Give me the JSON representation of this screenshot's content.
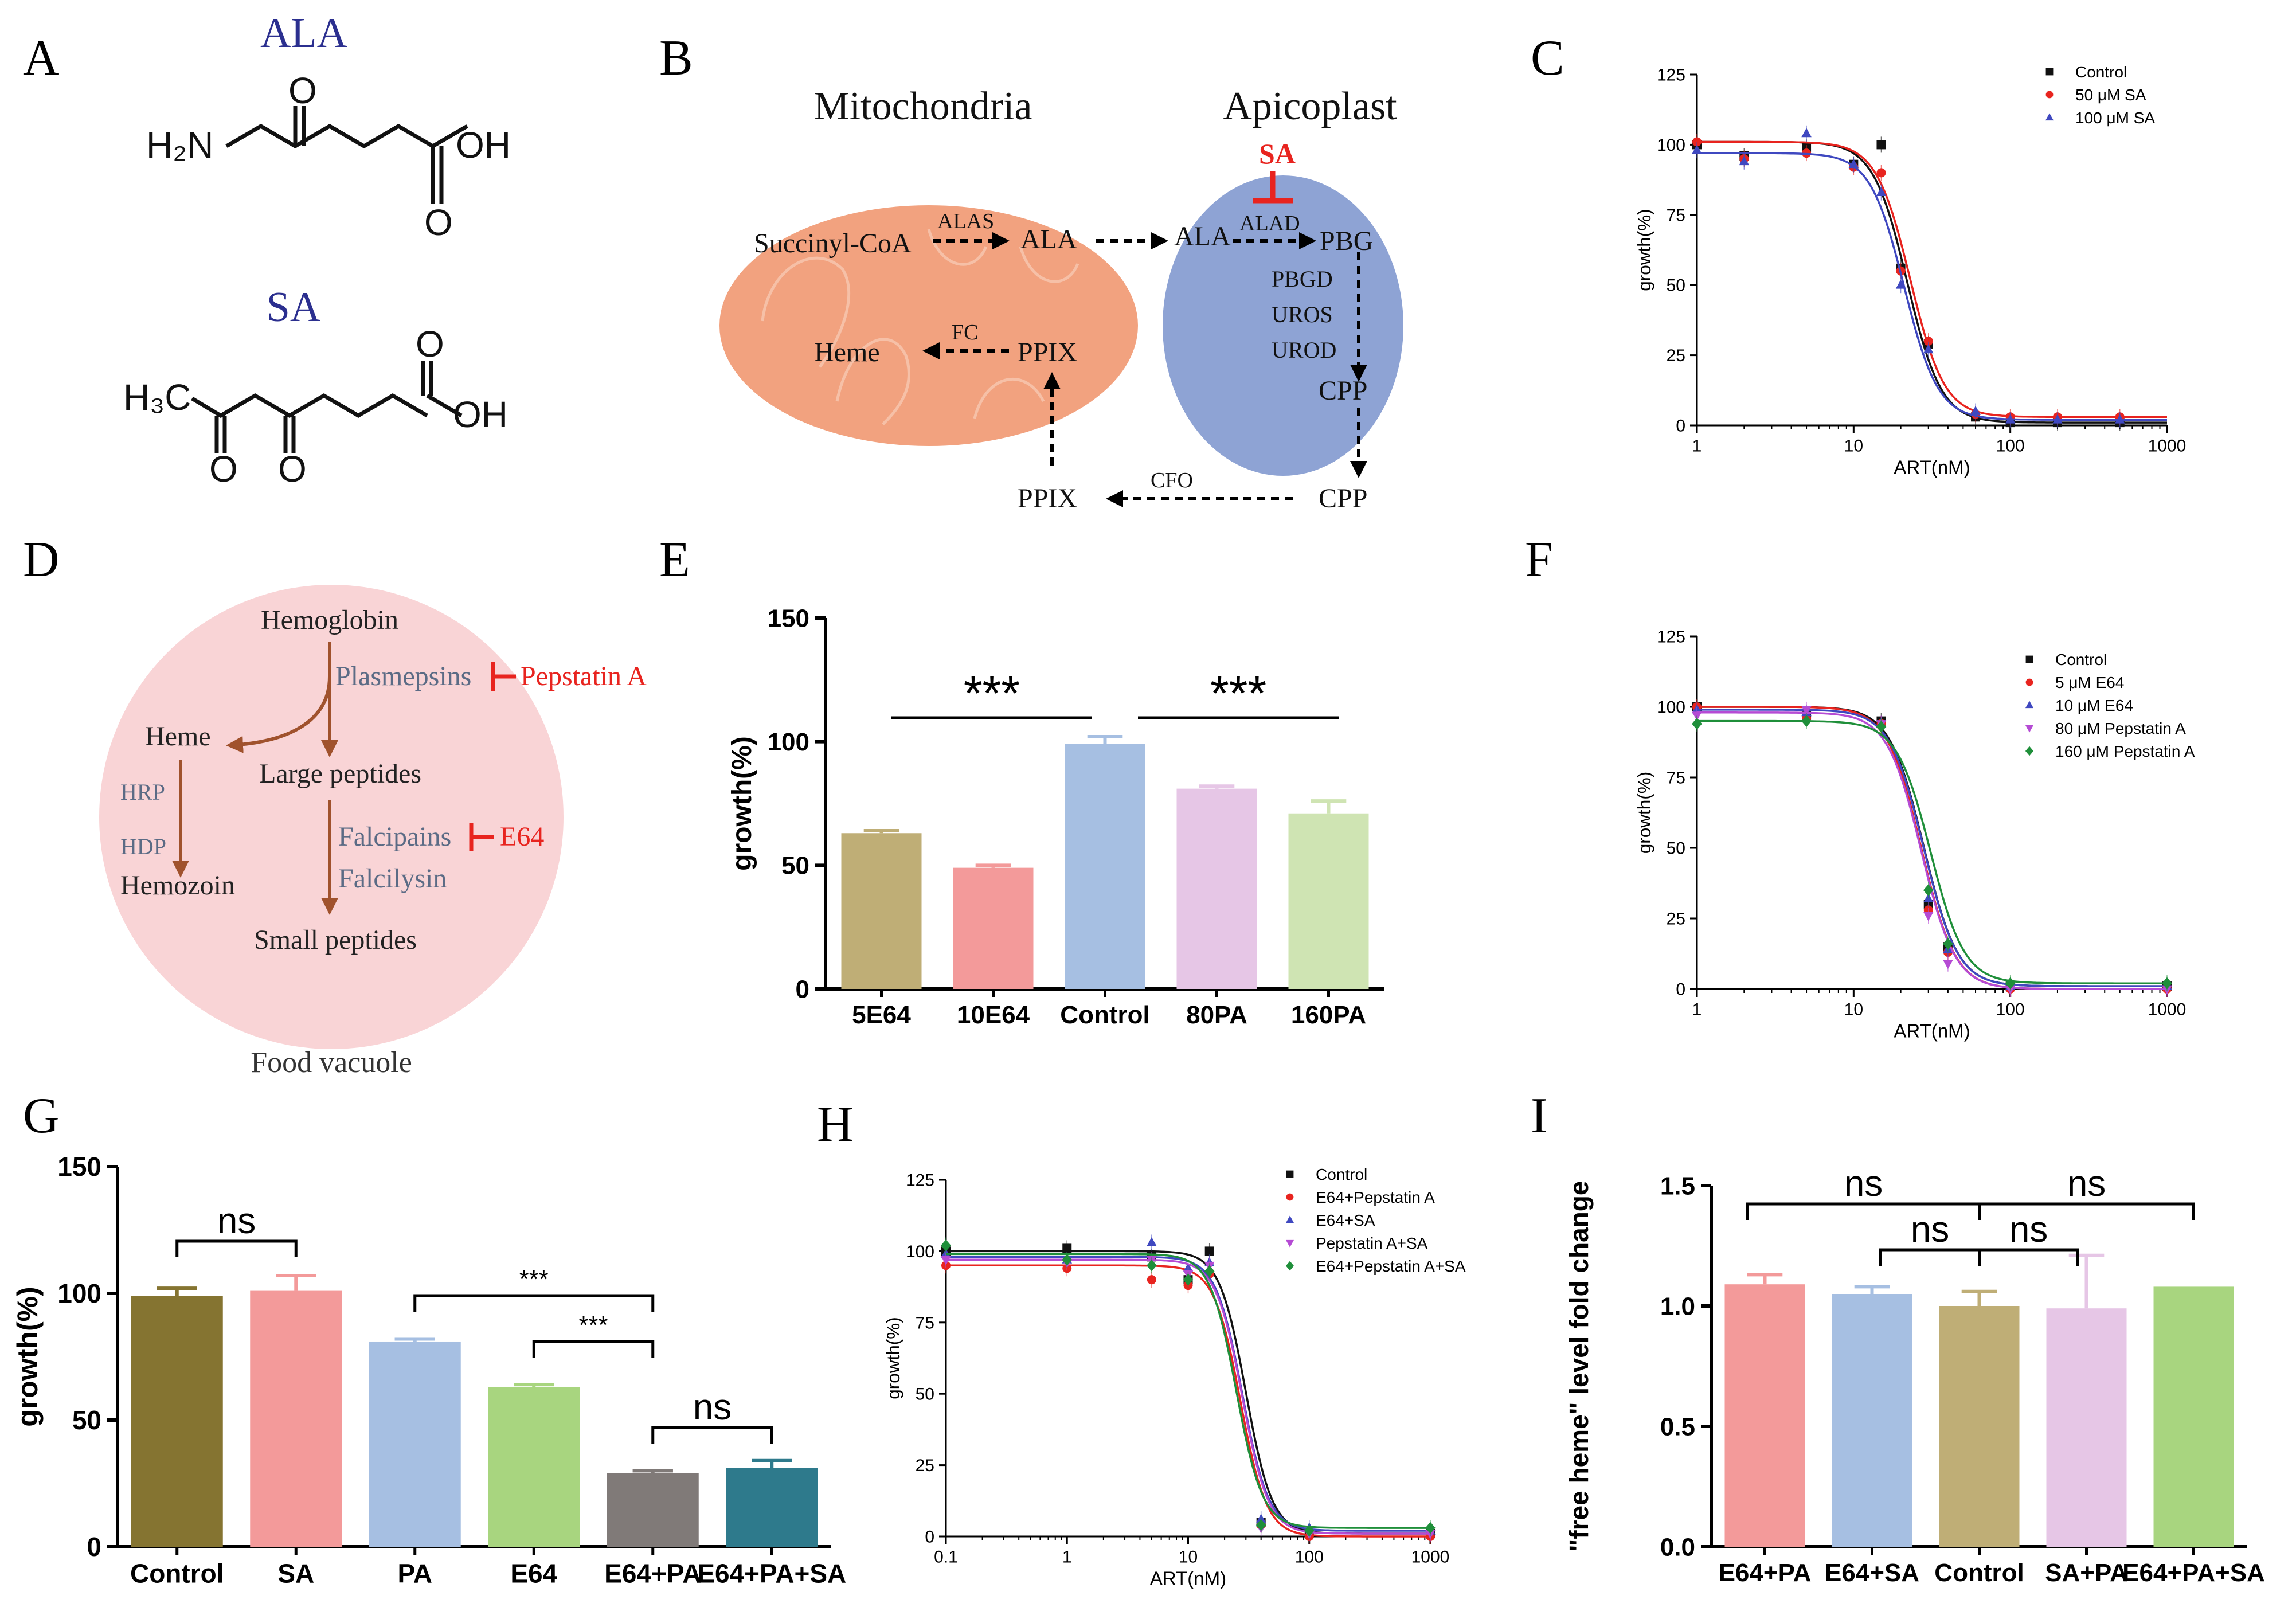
{
  "colors": {
    "mito": "#f2a27f",
    "apico": "#8ea3d4",
    "vacuole": "#f9d4d6",
    "red": "#e8241f",
    "navy": "#2b2f8f",
    "brown": "#a0522d",
    "blackMarker": "#111111",
    "redMarker": "#e8241f",
    "blueMarker": "#3f48c0",
    "purpleMarker": "#b54bd4",
    "greenMarker": "#1f8f3a"
  },
  "panels": {
    "A": {
      "letter": "A",
      "ala_title": "ALA",
      "sa_title": "SA",
      "ala_atoms": {
        "h2n": "H₂N",
        "o": "O",
        "o2": "O",
        "oh": "OH"
      },
      "sa_atoms": {
        "h3c": "H₃C",
        "o_top": "O",
        "oh": "OH",
        "o1": "O",
        "o2": "O"
      }
    },
    "B": {
      "letter": "B",
      "mito_title": "Mitochondria",
      "apico_title": "Apicoplast",
      "inhibitor": "SA",
      "labels": {
        "succinyl": "Succinyl-CoA",
        "alas": "ALAS",
        "ala_mito": "ALA",
        "ala_apico": "ALA",
        "alad": "ALAD",
        "pbg": "PBG",
        "pbgd": "PBGD",
        "uros": "UROS",
        "urod": "UROD",
        "cpp_in": "CPP",
        "cpp_out": "CPP",
        "cfo": "CFO",
        "ppix_out": "PPIX",
        "ppix_mito": "PPIX",
        "fc": "FC",
        "heme": "Heme"
      }
    },
    "C": {
      "letter": "C",
      "xlabel": "ART(nM)",
      "ylabel": "growth(%)",
      "yticks": [
        "0",
        "25",
        "50",
        "75",
        "100",
        "125"
      ],
      "xticks": [
        "1",
        "10",
        "100",
        "1000"
      ],
      "legend": [
        "Control",
        "50 μM SA",
        "100 μM SA"
      ]
    },
    "D": {
      "letter": "D",
      "hemoglobin": "Hemoglobin",
      "plasmepsins": "Plasmepsins",
      "pepstatin": "Pepstatin A",
      "heme": "Heme",
      "large_peptides": "Large peptides",
      "hrp": "HRP",
      "hdp": "HDP",
      "hemozoin": "Hemozoin",
      "falcipains": "Falcipains",
      "e64": "E64",
      "falcilysin": "Falcilysin",
      "small_peptides": "Small peptides",
      "food_vacuole": "Food vacuole"
    },
    "E": {
      "letter": "E",
      "ylabel": "growth(%)",
      "yticks": [
        "0",
        "50",
        "100",
        "150"
      ],
      "sig": [
        "***",
        "***"
      ]
    },
    "F": {
      "letter": "F",
      "xlabel": "ART(nM)",
      "ylabel": "growth(%)",
      "yticks": [
        "0",
        "25",
        "50",
        "75",
        "100",
        "125"
      ],
      "xticks": [
        "1",
        "10",
        "100",
        "1000"
      ],
      "legend": [
        "Control",
        "5 μM E64",
        "10 μM E64",
        "80 μM Pepstatin A",
        "160 μM Pepstatin A"
      ]
    },
    "G": {
      "letter": "G",
      "ylabel": "growth(%)",
      "yticks": [
        "0",
        "50",
        "100",
        "150"
      ],
      "sig": [
        "ns",
        "***",
        "***",
        "ns"
      ]
    },
    "H": {
      "letter": "H",
      "xlabel": "ART(nM)",
      "ylabel": "growth(%)",
      "yticks": [
        "0",
        "25",
        "50",
        "75",
        "100",
        "125"
      ],
      "xticks": [
        "0.1",
        "1",
        "10",
        "100",
        "1000"
      ],
      "legend": [
        "Control",
        "E64+Pepstatin A",
        "E64+SA",
        "Pepstatin A+SA",
        "E64+Pepstatin A+SA"
      ]
    },
    "I": {
      "letter": "I",
      "ylabel": "\"free heme\" level fold change",
      "yticks": [
        "0.0",
        "0.5",
        "1.0",
        "1.5"
      ],
      "sig": [
        "ns",
        "ns",
        "ns",
        "ns"
      ]
    }
  },
  "chart_data": [
    {
      "id": "C",
      "type": "scatter",
      "title": "",
      "xlabel": "ART(nM)",
      "ylabel": "growth(%)",
      "xscale": "log",
      "xlim": [
        1,
        1000
      ],
      "ylim": [
        0,
        125
      ],
      "x": [
        1,
        2,
        5,
        10,
        15,
        20,
        30,
        60,
        100,
        200,
        500
      ],
      "series": [
        {
          "name": "Control",
          "marker": "square",
          "color": "#111111",
          "values": [
            100,
            96,
            99,
            93,
            100,
            56,
            29,
            3,
            1,
            1,
            1
          ],
          "ic50": 22,
          "top": 101
        },
        {
          "name": "50 μM SA",
          "marker": "circle",
          "color": "#e8241f",
          "values": [
            101,
            95,
            97,
            92,
            90,
            55,
            30,
            4,
            3,
            3,
            3
          ],
          "ic50": 23,
          "top": 101
        },
        {
          "name": "100 μM SA",
          "marker": "triangle",
          "color": "#3f48c0",
          "values": [
            98,
            94,
            104,
            93,
            83,
            50,
            27,
            5,
            2,
            2,
            2
          ],
          "ic50": 21,
          "top": 97
        }
      ],
      "legend_position": "top-right"
    },
    {
      "id": "E",
      "type": "bar",
      "ylabel": "growth(%)",
      "ylim": [
        0,
        150
      ],
      "categories": [
        "5E64",
        "10E64",
        "Control",
        "80PA",
        "160PA"
      ],
      "values": [
        63,
        49,
        99,
        81,
        71
      ],
      "errors": [
        1,
        1,
        3,
        1,
        5
      ],
      "colors": [
        "#bfae76",
        "#f39a9a",
        "#a6bfe2",
        "#e6c6e6",
        "#cfe4b3"
      ]
    },
    {
      "id": "F",
      "type": "scatter",
      "xlabel": "ART(nM)",
      "ylabel": "growth(%)",
      "xscale": "log",
      "xlim": [
        1,
        1000
      ],
      "ylim": [
        0,
        125
      ],
      "x": [
        1,
        5,
        15,
        30,
        40,
        100,
        1000
      ],
      "series": [
        {
          "name": "Control",
          "marker": "square",
          "color": "#111111",
          "values": [
            100,
            97,
            95,
            30,
            15,
            1,
            1
          ],
          "ic50": 28,
          "top": 100
        },
        {
          "name": "5 μM E64",
          "marker": "circle",
          "color": "#e8241f",
          "values": [
            100,
            96,
            94,
            28,
            13,
            0,
            0
          ],
          "ic50": 27,
          "top": 100
        },
        {
          "name": "10 μM E64",
          "marker": "triangle",
          "color": "#3f48c0",
          "values": [
            99,
            98,
            94,
            32,
            14,
            1,
            1
          ],
          "ic50": 28,
          "top": 99
        },
        {
          "name": "80 μM Pepstatin A",
          "marker": "triangle-down",
          "color": "#b54bd4",
          "values": [
            97,
            99,
            94,
            26,
            9,
            0,
            0
          ],
          "ic50": 27,
          "top": 98
        },
        {
          "name": "160 μM Pepstatin A",
          "marker": "diamond",
          "color": "#1f8f3a",
          "values": [
            94,
            95,
            93,
            35,
            16,
            2,
            2
          ],
          "ic50": 31,
          "top": 95
        }
      ],
      "legend_position": "top-right"
    },
    {
      "id": "G",
      "type": "bar",
      "ylabel": "growth(%)",
      "ylim": [
        0,
        150
      ],
      "categories": [
        "Control",
        "SA",
        "PA",
        "E64",
        "E64+PA",
        "E64+PA+SA"
      ],
      "values": [
        99,
        101,
        81,
        63,
        29,
        31
      ],
      "errors": [
        3,
        6,
        1,
        1,
        1,
        3
      ],
      "colors": [
        "#857431",
        "#f39a9a",
        "#a6bfe2",
        "#a8d57f",
        "#807a78",
        "#2e7a8c"
      ]
    },
    {
      "id": "H",
      "type": "scatter",
      "xlabel": "ART(nM)",
      "ylabel": "growth(%)",
      "xscale": "log",
      "xlim": [
        0.1,
        1000
      ],
      "ylim": [
        0,
        125
      ],
      "x": [
        0.1,
        1,
        5,
        10,
        15,
        40,
        100,
        1000
      ],
      "series": [
        {
          "name": "Control",
          "marker": "square",
          "color": "#111111",
          "values": [
            100,
            101,
            98,
            90,
            100,
            5,
            1,
            1
          ],
          "ic50": 30,
          "top": 100
        },
        {
          "name": "E64+Pepstatin A",
          "marker": "circle",
          "color": "#e8241f",
          "values": [
            95,
            94,
            90,
            88,
            92,
            4,
            0,
            0
          ],
          "ic50": 27,
          "top": 95
        },
        {
          "name": "E64+SA",
          "marker": "triangle",
          "color": "#3f48c0",
          "values": [
            99,
            97,
            103,
            94,
            96,
            6,
            3,
            2
          ],
          "ic50": 28,
          "top": 98
        },
        {
          "name": "Pepstatin A+SA",
          "marker": "triangle-down",
          "color": "#b54bd4",
          "values": [
            97,
            96,
            97,
            92,
            95,
            3,
            1,
            1
          ],
          "ic50": 28,
          "top": 97
        },
        {
          "name": "E64+Pepstatin A+SA",
          "marker": "diamond",
          "color": "#1f8f3a",
          "values": [
            102,
            97,
            95,
            90,
            93,
            4,
            2,
            3
          ],
          "ic50": 25,
          "top": 99
        }
      ],
      "legend_position": "top-right"
    },
    {
      "id": "I",
      "type": "bar",
      "ylabel": "\"free heme\" level fold change",
      "ylim": [
        0,
        1.5
      ],
      "categories": [
        "E64+PA",
        "E64+SA",
        "Control",
        "SA+PA",
        "E64+PA+SA"
      ],
      "values": [
        1.09,
        1.05,
        1.0,
        0.99,
        1.08
      ],
      "errors": [
        0.04,
        0.03,
        0.06,
        0.22,
        0.0
      ],
      "colors": [
        "#f39a9a",
        "#a6bfe2",
        "#bfae76",
        "#e6c6e6",
        "#a8d57f"
      ]
    }
  ]
}
